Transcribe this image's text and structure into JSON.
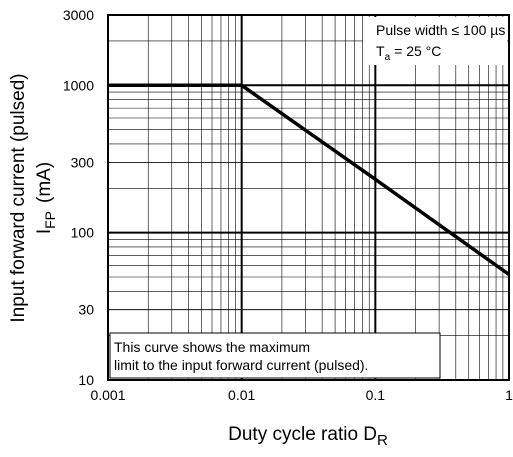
{
  "chart_data": {
    "type": "line",
    "y_label": "Input forward current (pulsed)",
    "y_label_2": [
      "I",
      "FP",
      "(mA)"
    ],
    "x_label": [
      "Duty cycle ratio D",
      "R"
    ],
    "annotation_1": "Pulse width ≤ 100 µs",
    "annotation_2": [
      "T",
      "a",
      "= 25 °C"
    ],
    "note": [
      "This curve shows the maximum",
      "limit to the input forward current (pulsed)."
    ],
    "x": [
      0.001,
      0.01,
      0.1,
      1
    ],
    "series": [
      {
        "color": "#000000",
        "values": [
          1000,
          1000,
          230,
          52
        ]
      }
    ],
    "xlim": [
      0.001,
      1
    ],
    "ylim": [
      10,
      3000
    ],
    "xticks": [
      0.001,
      0.01,
      0.1,
      1
    ],
    "yticks": [
      10,
      30,
      100,
      300,
      1000,
      3000
    ],
    "xscale": "log",
    "yscale": "log",
    "grid": true
  }
}
